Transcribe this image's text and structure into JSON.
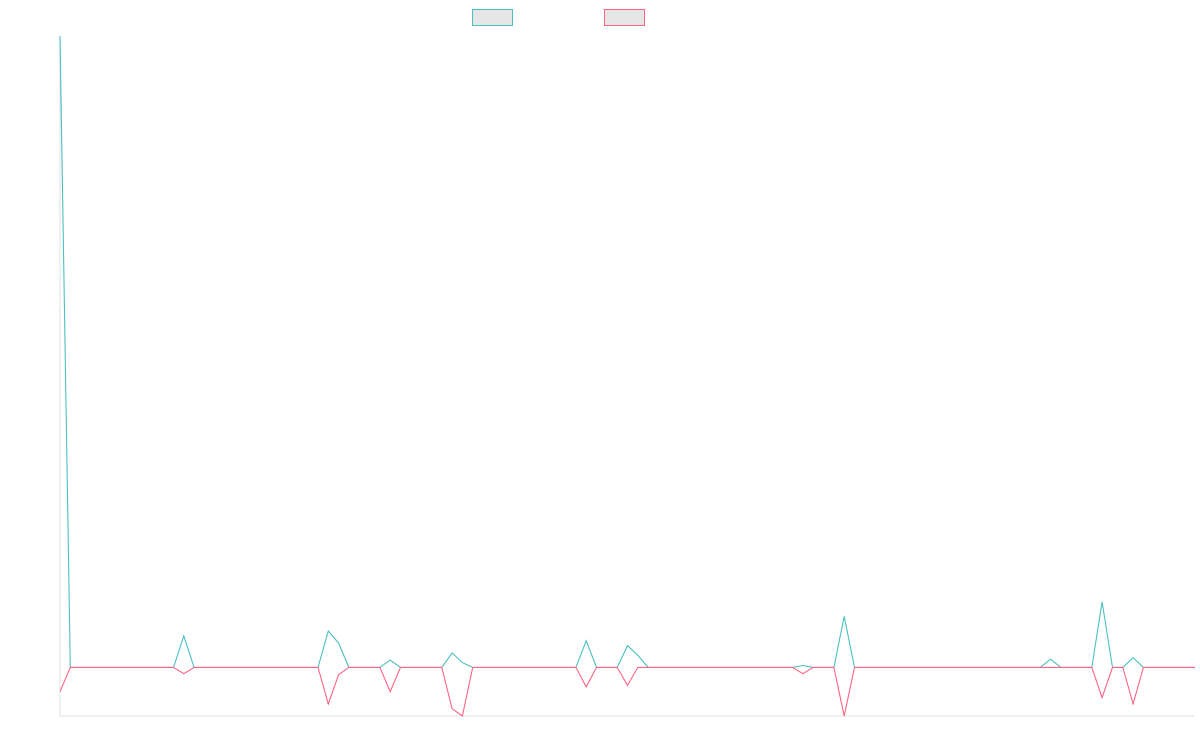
{
  "chart_data": {
    "type": "line",
    "title": "",
    "xlabel": "",
    "ylabel": "",
    "ylim": [
      -10,
      130
    ],
    "xlim": [
      0,
      110
    ],
    "grid": false,
    "legend_position": "top-center",
    "series": [
      {
        "color": "#4bc0c0",
        "points": [
          [
            0,
            130
          ],
          [
            1,
            0
          ],
          [
            11,
            0
          ],
          [
            12,
            6.5
          ],
          [
            13,
            0
          ],
          [
            25,
            0
          ],
          [
            26,
            7.5
          ],
          [
            27,
            5
          ],
          [
            28,
            0
          ],
          [
            31,
            0
          ],
          [
            32,
            1.5
          ],
          [
            33,
            0
          ],
          [
            37,
            0
          ],
          [
            38,
            3
          ],
          [
            39,
            1
          ],
          [
            40,
            0
          ],
          [
            50,
            0
          ],
          [
            51,
            5.5
          ],
          [
            52,
            0
          ],
          [
            54,
            0
          ],
          [
            55,
            4.5
          ],
          [
            56,
            2.5
          ],
          [
            57,
            0
          ],
          [
            71,
            0
          ],
          [
            72,
            0.4
          ],
          [
            73,
            0
          ],
          [
            75,
            0
          ],
          [
            76,
            10.5
          ],
          [
            77,
            0
          ],
          [
            95,
            0
          ],
          [
            96,
            1.7
          ],
          [
            97,
            0
          ],
          [
            100,
            0
          ],
          [
            101,
            13.5
          ],
          [
            102,
            0
          ],
          [
            103,
            0
          ],
          [
            104,
            2
          ],
          [
            105,
            0
          ],
          [
            110,
            0
          ]
        ]
      },
      {
        "color": "#ff6384",
        "points": [
          [
            0,
            -5
          ],
          [
            1,
            0
          ],
          [
            11,
            0
          ],
          [
            12,
            -1.3
          ],
          [
            13,
            0
          ],
          [
            25,
            0
          ],
          [
            26,
            -7.5
          ],
          [
            27,
            -1.5
          ],
          [
            28,
            0
          ],
          [
            31,
            0
          ],
          [
            32,
            -5
          ],
          [
            33,
            0
          ],
          [
            37,
            0
          ],
          [
            38,
            -8.5
          ],
          [
            39,
            -10
          ],
          [
            40,
            0
          ],
          [
            50,
            0
          ],
          [
            51,
            -4
          ],
          [
            52,
            0
          ],
          [
            54,
            0
          ],
          [
            55,
            -3.7
          ],
          [
            56,
            0
          ],
          [
            71,
            0
          ],
          [
            72,
            -1.3
          ],
          [
            73,
            0
          ],
          [
            75,
            0
          ],
          [
            76,
            -10
          ],
          [
            77,
            0
          ],
          [
            100,
            0
          ],
          [
            101,
            -6.2
          ],
          [
            102,
            0
          ],
          [
            103,
            0
          ],
          [
            104,
            -7.5
          ],
          [
            105,
            0
          ],
          [
            110,
            0
          ]
        ]
      }
    ]
  }
}
